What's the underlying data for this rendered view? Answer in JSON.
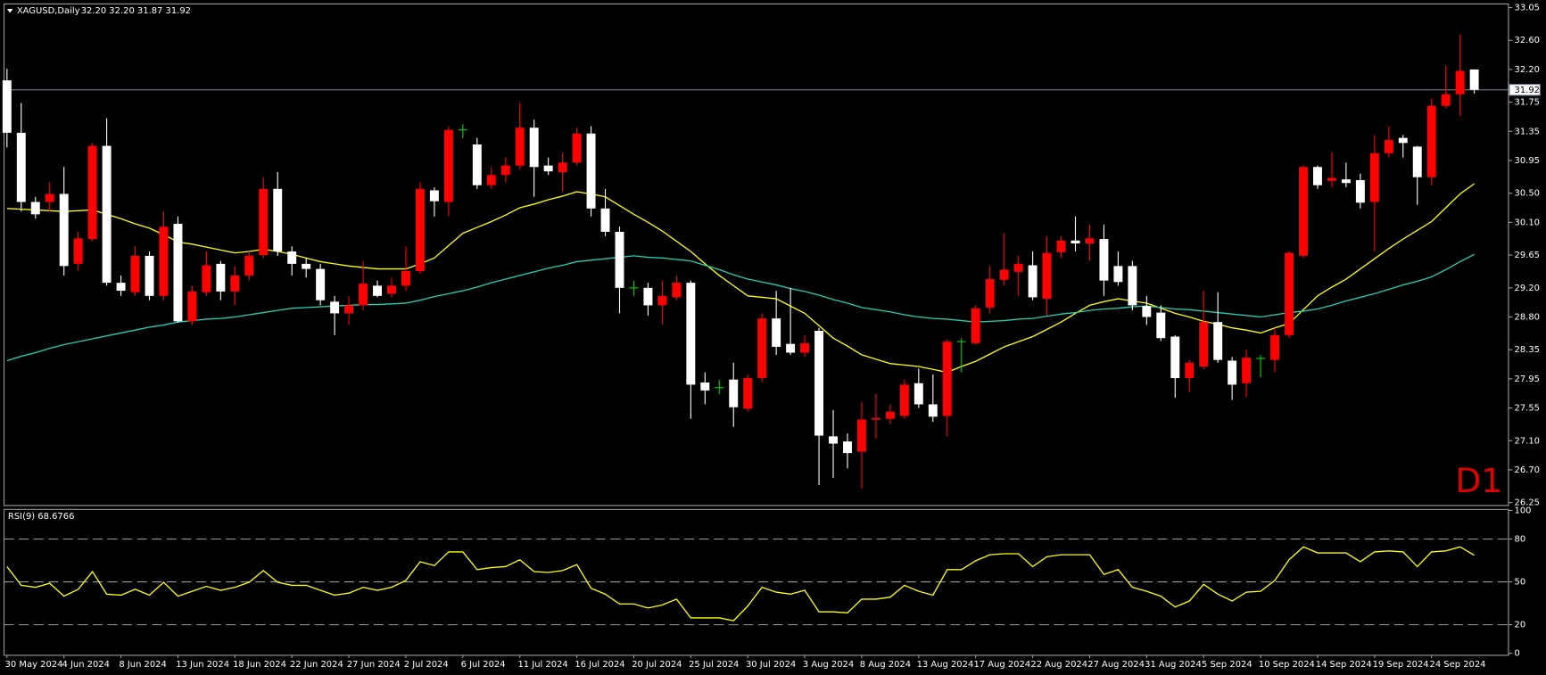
{
  "chart_data": [
    {
      "type": "candlestick",
      "title": "XAGUSD,Daily",
      "quote": "32.20 32.20 31.87 31.92",
      "watermark": "D1",
      "bull_color": "#ff0000",
      "bear_color": "#ffffff",
      "doji_color": "#00d000",
      "watermark_color": "#e00000",
      "categories": [
        "30 May 2024",
        null,
        null,
        null,
        "4 Jun 2024",
        null,
        null,
        null,
        "8 Jun 2024",
        null,
        null,
        null,
        "13 Jun 2024",
        null,
        null,
        null,
        "18 Jun 2024",
        null,
        null,
        null,
        "22 Jun 2024",
        null,
        null,
        null,
        "27 Jun 2024",
        null,
        null,
        null,
        "2 Jul 2024",
        null,
        null,
        null,
        "6 Jul 2024",
        null,
        null,
        null,
        "11 Jul 2024",
        null,
        null,
        null,
        "16 Jul 2024",
        null,
        null,
        null,
        "20 Jul 2024",
        null,
        null,
        null,
        "25 Jul 2024",
        null,
        null,
        null,
        "30 Jul 2024",
        null,
        null,
        null,
        "3 Aug 2024",
        null,
        null,
        null,
        "8 Aug 2024",
        null,
        null,
        null,
        "13 Aug 2024",
        null,
        null,
        null,
        "17 Aug 2024",
        null,
        null,
        null,
        "22 Aug 2024",
        null,
        null,
        null,
        "27 Aug 2024",
        null,
        null,
        null,
        "31 Aug 2024",
        null,
        null,
        null,
        "5 Sep 2024",
        null,
        null,
        null,
        "10 Sep 2024",
        null,
        null,
        null,
        "14 Sep 2024",
        null,
        null,
        null,
        "19 Sep 2024",
        null,
        null,
        null,
        "24 Sep 2024",
        null,
        null,
        null
      ],
      "open": [
        32.05,
        31.33,
        30.38,
        30.38,
        30.49,
        29.53,
        29.87,
        31.15,
        29.27,
        29.14,
        29.64,
        29.09,
        30.08,
        28.74,
        29.14,
        29.53,
        29.15,
        29.37,
        29.65,
        30.56,
        29.7,
        29.53,
        29.46,
        29.01,
        28.85,
        28.96,
        29.23,
        29.12,
        29.23,
        29.43,
        30.54,
        30.38,
        31.37,
        31.17,
        30.61,
        30.75,
        30.88,
        31.4,
        30.88,
        30.79,
        30.92,
        31.32,
        30.29,
        29.97,
        29.2,
        29.2,
        28.96,
        29.07,
        29.27,
        27.9,
        27.83,
        27.94,
        27.54,
        27.96,
        28.78,
        28.43,
        28.31,
        28.61,
        27.16,
        27.09,
        26.95,
        27.39,
        27.4,
        27.44,
        27.89,
        27.6,
        27.44,
        28.46,
        28.44,
        28.93,
        29.31,
        29.42,
        29.51,
        29.05,
        29.69,
        29.85,
        29.81,
        29.87,
        29.5,
        29.5,
        28.95,
        28.86,
        28.53,
        27.96,
        28.12,
        28.73,
        28.2,
        27.89,
        28.23,
        28.21,
        28.55,
        29.64,
        30.86,
        30.67,
        30.69,
        30.68,
        30.38,
        31.05,
        31.26,
        31.14,
        30.72,
        31.7,
        31.86,
        32.2
      ],
      "high": [
        32.21,
        31.74,
        30.45,
        30.65,
        30.86,
        29.97,
        31.19,
        31.53,
        29.37,
        29.77,
        29.7,
        30.25,
        30.18,
        29.23,
        29.7,
        29.57,
        29.5,
        29.7,
        30.72,
        30.79,
        29.77,
        29.61,
        29.53,
        29.09,
        29.09,
        29.57,
        29.3,
        29.34,
        29.77,
        30.65,
        30.58,
        31.42,
        31.45,
        31.26,
        30.86,
        30.99,
        31.74,
        31.51,
        30.99,
        31.06,
        31.4,
        31.42,
        30.56,
        30.04,
        29.3,
        29.27,
        29.3,
        29.37,
        29.3,
        28.04,
        27.94,
        28.17,
        28.01,
        28.85,
        29.16,
        29.2,
        28.55,
        28.65,
        27.52,
        27.2,
        27.63,
        27.74,
        27.6,
        27.94,
        28.09,
        28.01,
        28.49,
        28.51,
        28.96,
        29.5,
        29.95,
        29.64,
        29.7,
        29.91,
        29.91,
        30.18,
        30.07,
        30.07,
        29.7,
        29.57,
        29.09,
        28.96,
        28.55,
        28.21,
        29.16,
        29.14,
        28.25,
        28.35,
        28.28,
        28.65,
        29.7,
        30.88,
        30.88,
        31.06,
        30.92,
        30.77,
        31.3,
        31.42,
        31.3,
        31.15,
        31.8,
        32.25,
        32.68,
        32.2
      ],
      "low": [
        31.13,
        30.25,
        30.15,
        30.25,
        29.37,
        29.43,
        29.84,
        29.23,
        29.09,
        29.09,
        29.03,
        29.03,
        28.72,
        28.69,
        29.09,
        29.03,
        28.96,
        29.3,
        29.61,
        29.64,
        29.37,
        29.34,
        28.96,
        28.55,
        28.69,
        28.89,
        29.07,
        29.07,
        29.16,
        29.39,
        30.18,
        30.18,
        31.26,
        30.56,
        30.56,
        30.65,
        30.83,
        30.45,
        30.75,
        30.52,
        30.88,
        30.18,
        29.91,
        28.85,
        29.09,
        28.82,
        28.69,
        29.03,
        27.4,
        27.6,
        27.74,
        27.29,
        27.5,
        27.9,
        28.28,
        28.28,
        28.25,
        26.49,
        26.59,
        26.72,
        26.44,
        27.13,
        27.33,
        27.4,
        27.55,
        27.36,
        27.16,
        28.04,
        28.42,
        28.85,
        29.23,
        29.09,
        29.03,
        28.82,
        29.61,
        29.7,
        29.57,
        29.09,
        29.23,
        28.89,
        28.69,
        28.47,
        27.69,
        27.77,
        28.08,
        28.17,
        27.66,
        27.7,
        27.97,
        28.04,
        28.51,
        29.61,
        30.56,
        30.58,
        30.58,
        30.29,
        29.7,
        30.99,
        30.99,
        30.34,
        30.61,
        31.67,
        31.56,
        31.87
      ],
      "close": [
        31.33,
        30.38,
        30.21,
        30.49,
        29.5,
        29.88,
        31.15,
        29.27,
        29.16,
        29.64,
        29.09,
        30.04,
        28.74,
        29.15,
        29.51,
        29.15,
        29.37,
        29.64,
        30.56,
        29.7,
        29.53,
        29.46,
        29.03,
        28.85,
        28.96,
        29.26,
        29.09,
        29.23,
        29.43,
        30.56,
        30.39,
        31.37,
        31.37,
        30.61,
        30.75,
        30.88,
        31.4,
        30.86,
        30.8,
        30.92,
        31.32,
        30.29,
        29.97,
        29.2,
        29.2,
        28.96,
        29.09,
        29.27,
        27.87,
        27.79,
        27.83,
        27.56,
        27.96,
        28.78,
        28.39,
        28.31,
        28.44,
        27.17,
        27.06,
        26.93,
        27.39,
        27.41,
        27.5,
        27.87,
        27.6,
        27.43,
        28.46,
        28.46,
        28.92,
        29.32,
        29.45,
        29.53,
        29.07,
        29.68,
        29.85,
        29.81,
        29.88,
        29.3,
        29.28,
        28.96,
        28.8,
        28.51,
        27.96,
        28.17,
        28.73,
        28.21,
        27.87,
        28.24,
        28.23,
        28.55,
        29.68,
        30.86,
        30.61,
        30.71,
        30.64,
        30.37,
        31.05,
        31.23,
        31.19,
        30.72,
        31.7,
        31.86,
        32.18,
        31.92
      ],
      "series": [
        {
          "color": "#ffff00",
          "values": [
            30.29,
            30.28,
            30.27,
            30.26,
            30.25,
            30.26,
            30.27,
            30.21,
            30.15,
            30.08,
            30.02,
            29.93,
            29.83,
            29.8,
            29.76,
            29.72,
            29.68,
            29.7,
            29.73,
            29.7,
            29.66,
            29.61,
            29.56,
            29.53,
            29.5,
            29.48,
            29.46,
            29.46,
            29.46,
            29.53,
            29.61,
            29.78,
            29.95,
            30.03,
            30.11,
            30.2,
            30.3,
            30.35,
            30.41,
            30.46,
            30.52,
            30.49,
            30.45,
            30.33,
            30.21,
            30.1,
            29.98,
            29.84,
            29.7,
            29.53,
            29.37,
            29.23,
            29.09,
            29.07,
            29.05,
            28.95,
            28.85,
            28.68,
            28.51,
            28.4,
            28.28,
            28.22,
            28.16,
            28.14,
            28.12,
            28.08,
            28.04,
            28.12,
            28.19,
            28.29,
            28.39,
            28.46,
            28.53,
            28.63,
            28.73,
            28.85,
            28.96,
            29.01,
            29.05,
            29.02,
            28.99,
            28.92,
            28.85,
            28.8,
            28.74,
            28.7,
            28.65,
            28.62,
            28.58,
            28.65,
            28.71,
            28.9,
            29.09,
            29.21,
            29.32,
            29.46,
            29.6,
            29.74,
            29.87,
            29.99,
            30.11,
            30.3,
            30.49,
            30.63
          ]
        },
        {
          "color": "#20d0b0",
          "values": [
            28.2,
            28.26,
            28.31,
            28.37,
            28.42,
            28.46,
            28.5,
            28.54,
            28.58,
            28.62,
            28.66,
            28.69,
            28.73,
            28.75,
            28.77,
            28.78,
            28.8,
            28.83,
            28.86,
            28.89,
            28.92,
            28.93,
            28.94,
            28.95,
            28.96,
            28.97,
            28.97,
            28.98,
            28.99,
            29.03,
            29.08,
            29.12,
            29.16,
            29.21,
            29.27,
            29.32,
            29.37,
            29.42,
            29.47,
            29.51,
            29.56,
            29.58,
            29.6,
            29.62,
            29.64,
            29.62,
            29.61,
            29.59,
            29.57,
            29.51,
            29.45,
            29.38,
            29.32,
            29.28,
            29.24,
            29.19,
            29.15,
            29.1,
            29.04,
            28.99,
            28.93,
            28.9,
            28.87,
            28.83,
            28.8,
            28.78,
            28.77,
            28.75,
            28.73,
            28.74,
            28.75,
            28.77,
            28.78,
            28.81,
            28.84,
            28.86,
            28.89,
            28.91,
            28.92,
            28.94,
            28.95,
            28.93,
            28.91,
            28.9,
            28.88,
            28.86,
            28.84,
            28.82,
            28.8,
            28.83,
            28.86,
            28.88,
            28.91,
            28.96,
            29.02,
            29.07,
            29.12,
            29.18,
            29.24,
            29.29,
            29.35,
            29.45,
            29.56,
            29.66
          ]
        }
      ],
      "current_price": {
        "value": 31.92,
        "label": "31.92"
      },
      "current_price_color": "#778899",
      "ylim": [
        26.21,
        33.1
      ],
      "yticks": [
        33.05,
        {
          "value": 32.6,
          "label": "32.60"
        },
        {
          "value": 32.2,
          "label": "32.20"
        },
        31.75,
        31.35,
        30.95,
        {
          "value": 30.5,
          "label": "30.50"
        },
        {
          "value": 30.1,
          "label": "30.10"
        },
        29.65,
        {
          "value": 29.2,
          "label": "29.20"
        },
        {
          "value": 28.8,
          "label": "28.80"
        },
        28.35,
        27.95,
        27.55,
        {
          "value": 27.1,
          "label": "27.10"
        },
        {
          "value": 26.7,
          "label": "26.70"
        },
        26.25
      ]
    },
    {
      "type": "line",
      "title": "RSI(9) 68.6766",
      "series": [
        {
          "color": "#ffff00",
          "values": [
            60.7,
            47.6,
            46.2,
            49.0,
            40.0,
            44.8,
            57.2,
            41.4,
            40.7,
            44.8,
            40.7,
            49.7,
            40.0,
            43.4,
            46.9,
            44.1,
            46.2,
            49.7,
            57.9,
            49.7,
            47.6,
            47.6,
            44.1,
            40.7,
            42.1,
            46.2,
            44.1,
            46.2,
            51.0,
            64.1,
            61.4,
            71.0,
            71.0,
            58.6,
            60.0,
            60.7,
            65.5,
            57.2,
            56.6,
            57.9,
            62.1,
            45.5,
            41.4,
            34.5,
            34.5,
            31.7,
            33.8,
            37.9,
            24.8,
            24.8,
            24.8,
            22.8,
            33.1,
            46.2,
            42.8,
            41.4,
            44.1,
            29.0,
            29.0,
            28.3,
            37.9,
            37.9,
            39.3,
            47.6,
            43.4,
            40.7,
            58.6,
            58.6,
            64.8,
            69.0,
            69.7,
            69.7,
            60.7,
            67.6,
            69.0,
            69.0,
            69.0,
            55.2,
            58.6,
            46.2,
            43.4,
            40.0,
            32.4,
            36.6,
            48.3,
            41.4,
            36.6,
            42.8,
            43.4,
            51.0,
            65.5,
            74.5,
            70.3,
            70.3,
            70.3,
            64.1,
            71.0,
            71.7,
            71.0,
            60.7,
            71.0,
            71.7,
            74.5,
            68.6766
          ]
        }
      ],
      "levels": [
        20,
        50,
        80
      ],
      "ylim": [
        -1.4,
        100.7
      ],
      "yticks": [
        0,
        20,
        50,
        80,
        100
      ]
    }
  ]
}
